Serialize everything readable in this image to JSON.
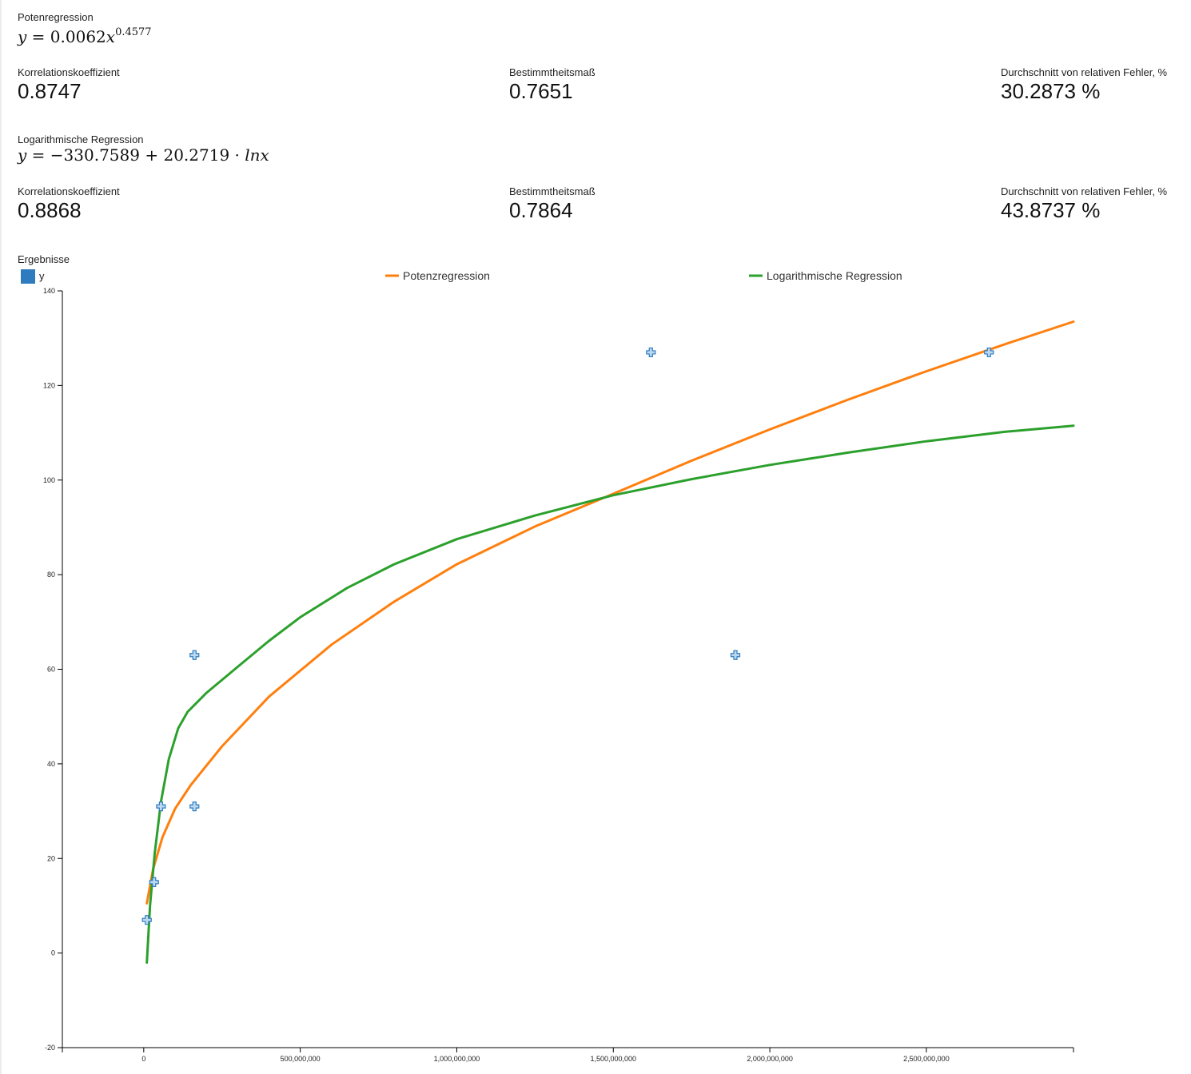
{
  "power": {
    "caption": "Potenregression",
    "formula": {
      "lhs": "y",
      "coef": "0.0062",
      "var": "x",
      "exp": "0.4577"
    },
    "metrics": [
      {
        "label": "Korrelationskoeffizient",
        "value": "0.8747"
      },
      {
        "label": "Bestimmtheitsmaß",
        "value": "0.7651"
      },
      {
        "label": "Durchschnitt von relativen Fehler, %",
        "value": "30.2873 %"
      }
    ]
  },
  "log": {
    "caption": "Logarithmische Regression",
    "formula": {
      "lhs": "y",
      "a": "−330.7589",
      "b": "20.2719",
      "fn": "lnx"
    },
    "metrics": [
      {
        "label": "Korrelationskoeffizient",
        "value": "0.8868"
      },
      {
        "label": "Bestimmtheitsmaß",
        "value": "0.7864"
      },
      {
        "label": "Durchschnitt von relativen Fehler, %",
        "value": "43.8737 %"
      }
    ]
  },
  "chart_data": {
    "type": "scatter",
    "title": "Ergebnisse",
    "legend": {
      "placement": "top"
    },
    "xlim": [
      -260000000,
      2970000000
    ],
    "ylim": [
      -20,
      140
    ],
    "x_ticks": [
      0,
      500000000,
      1000000000,
      1500000000,
      2000000000,
      2500000000
    ],
    "x_tick_labels": [
      "0",
      "500,000,000",
      "1,000,000,000",
      "1,500,000,000",
      "2,000,000,000",
      "2,500,000,000"
    ],
    "y_ticks": [
      -20,
      0,
      20,
      40,
      60,
      80,
      100,
      120,
      140
    ],
    "y_tick_labels": [
      "-20",
      "0",
      "20",
      "40",
      "60",
      "80",
      "100",
      "120",
      "140"
    ],
    "series": [
      {
        "name": "y",
        "kind": "points",
        "color": "#2f7bbf",
        "points": [
          [
            10000000,
            7
          ],
          [
            33000000,
            15
          ],
          [
            55000000,
            31
          ],
          [
            162000000,
            31
          ],
          [
            162000000,
            63
          ],
          [
            1620000000,
            127
          ],
          [
            1890000000,
            63
          ],
          [
            2700000000,
            127
          ]
        ]
      },
      {
        "name": "Potenzregression",
        "kind": "line",
        "color": "#ff7f0e",
        "points": [
          [
            10000000,
            10.5
          ],
          [
            30000000,
            17.8
          ],
          [
            60000000,
            24.5
          ],
          [
            100000000,
            30.5
          ],
          [
            150000000,
            35.5
          ],
          [
            250000000,
            43.7
          ],
          [
            400000000,
            54.2
          ],
          [
            600000000,
            65.2
          ],
          [
            800000000,
            74.3
          ],
          [
            1000000000,
            82.2
          ],
          [
            1250000000,
            90.2
          ],
          [
            1500000000,
            97.1
          ],
          [
            1750000000,
            104.1
          ],
          [
            2000000000,
            110.7
          ],
          [
            2250000000,
            117.0
          ],
          [
            2500000000,
            123.0
          ],
          [
            2750000000,
            128.7
          ],
          [
            2970000000,
            133.5
          ]
        ]
      },
      {
        "name": "Logarithmische Regression",
        "kind": "line",
        "color": "#2ca02c",
        "points": [
          [
            10000000,
            -2
          ],
          [
            20000000,
            10
          ],
          [
            35000000,
            21
          ],
          [
            55000000,
            32
          ],
          [
            80000000,
            41
          ],
          [
            110000000,
            47.5
          ],
          [
            140000000,
            51
          ],
          [
            200000000,
            55
          ],
          [
            300000000,
            60.5
          ],
          [
            400000000,
            66
          ],
          [
            500000000,
            71
          ],
          [
            650000000,
            77.2
          ],
          [
            800000000,
            82.2
          ],
          [
            1000000000,
            87.5
          ],
          [
            1250000000,
            92.5
          ],
          [
            1500000000,
            96.8
          ],
          [
            1750000000,
            100.2
          ],
          [
            2000000000,
            103.2
          ],
          [
            2250000000,
            105.8
          ],
          [
            2500000000,
            108.2
          ],
          [
            2750000000,
            110.2
          ],
          [
            2970000000,
            111.5
          ]
        ]
      }
    ]
  }
}
